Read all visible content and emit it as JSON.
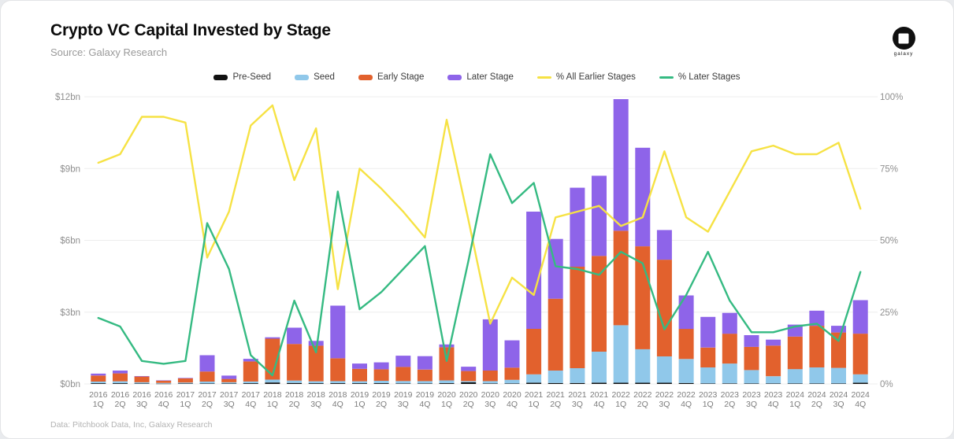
{
  "header": {
    "title": "Crypto VC Capital Invested by Stage",
    "subtitle": "Source: Galaxy Research",
    "logo_text": "galaxy"
  },
  "footer": {
    "source_note": "Data: Pitchbook Data, Inc, Galaxy Research"
  },
  "colors": {
    "pre_seed": "#111111",
    "seed": "#90C8EA",
    "early": "#E2612D",
    "later": "#8E64E9",
    "pct_earlier": "#F6E244",
    "pct_later": "#35BA82",
    "grid": "#ededed",
    "axis_text": "#8f8f8f",
    "x_label_text": "#7d7d7d"
  },
  "legend": [
    {
      "label": "Pre-Seed",
      "color_key": "pre_seed",
      "shape": "bar"
    },
    {
      "label": "Seed",
      "color_key": "seed",
      "shape": "bar"
    },
    {
      "label": "Early Stage",
      "color_key": "early",
      "shape": "bar"
    },
    {
      "label": "Later Stage",
      "color_key": "later",
      "shape": "bar"
    },
    {
      "label": "% All Earlier Stages",
      "color_key": "pct_earlier",
      "shape": "line"
    },
    {
      "label": "% Later Stages",
      "color_key": "pct_later",
      "shape": "line"
    }
  ],
  "chart_data": {
    "type": "combo",
    "subtype": "stacked-bar-with-lines",
    "title": "Crypto VC Capital Invested by Stage",
    "categories": [
      "2016 1Q",
      "2016 2Q",
      "2016 3Q",
      "2016 4Q",
      "2017 1Q",
      "2017 2Q",
      "2017 3Q",
      "2017 4Q",
      "2018 1Q",
      "2018 2Q",
      "2018 3Q",
      "2018 4Q",
      "2019 1Q",
      "2019 2Q",
      "2019 3Q",
      "2019 4Q",
      "2020 1Q",
      "2020 2Q",
      "2020 3Q",
      "2020 4Q",
      "2021 1Q",
      "2021 2Q",
      "2021 3Q",
      "2021 4Q",
      "2022 1Q",
      "2022 2Q",
      "2022 3Q",
      "2022 4Q",
      "2023 1Q",
      "2023 2Q",
      "2023 3Q",
      "2023 4Q",
      "2024 1Q",
      "2024 2Q",
      "2024 3Q",
      "2024 4Q"
    ],
    "bar_unit": "US$ billions",
    "bar_series": [
      {
        "name": "Pre-Seed",
        "color_key": "pre_seed",
        "values": [
          0.03,
          0.03,
          0.02,
          0.01,
          0.02,
          0.02,
          0.02,
          0.03,
          0.06,
          0.04,
          0.03,
          0.03,
          0.03,
          0.03,
          0.02,
          0.02,
          0.03,
          0.07,
          0.02,
          0.02,
          0.05,
          0.04,
          0.04,
          0.05,
          0.05,
          0.05,
          0.05,
          0.04,
          0.02,
          0.02,
          0.02,
          0.02,
          0.02,
          0.02,
          0.02,
          0.05
        ]
      },
      {
        "name": "Seed",
        "color_key": "seed",
        "values": [
          0.07,
          0.08,
          0.05,
          0.03,
          0.04,
          0.08,
          0.05,
          0.07,
          0.12,
          0.1,
          0.08,
          0.09,
          0.08,
          0.1,
          0.1,
          0.1,
          0.12,
          0.05,
          0.1,
          0.15,
          0.35,
          0.52,
          0.62,
          1.3,
          2.4,
          1.4,
          1.1,
          1.0,
          0.67,
          0.83,
          0.56,
          0.3,
          0.6,
          0.67,
          0.65,
          0.35
        ]
      },
      {
        "name": "Early Stage",
        "color_key": "early",
        "values": [
          0.25,
          0.33,
          0.24,
          0.1,
          0.17,
          0.42,
          0.14,
          0.84,
          1.71,
          1.53,
          1.49,
          0.95,
          0.52,
          0.48,
          0.59,
          0.48,
          1.38,
          0.42,
          0.44,
          0.51,
          1.9,
          3.0,
          4.24,
          4.0,
          3.95,
          4.3,
          4.04,
          1.26,
          0.83,
          1.25,
          0.97,
          1.28,
          1.36,
          1.74,
          1.48,
          1.7
        ]
      },
      {
        "name": "Later Stage",
        "color_key": "later",
        "values": [
          0.08,
          0.12,
          0.02,
          0.01,
          0.02,
          0.68,
          0.14,
          0.11,
          0.06,
          0.68,
          0.2,
          2.2,
          0.22,
          0.29,
          0.47,
          0.56,
          0.12,
          0.18,
          2.14,
          1.14,
          4.9,
          2.5,
          3.3,
          3.35,
          5.5,
          4.12,
          1.24,
          1.4,
          1.28,
          0.87,
          0.49,
          0.25,
          0.5,
          0.63,
          0.28,
          1.4
        ]
      }
    ],
    "line_unit": "percent",
    "line_series": [
      {
        "name": "% All Earlier Stages",
        "color_key": "pct_earlier",
        "axis": "right",
        "values": [
          77,
          80,
          93,
          93,
          91,
          44,
          60,
          90,
          97,
          71,
          89,
          33,
          75,
          68,
          60,
          51,
          92,
          57,
          21,
          37,
          31,
          58,
          60,
          62,
          55,
          58,
          81,
          58,
          53,
          67,
          81,
          83,
          80,
          80,
          84,
          61
        ]
      },
      {
        "name": "% Later Stages",
        "color_key": "pct_later",
        "axis": "right",
        "values": [
          23,
          20,
          8,
          7,
          8,
          56,
          40,
          10,
          3,
          29,
          11,
          67,
          26,
          32,
          40,
          48,
          8,
          43,
          80,
          63,
          70,
          41,
          40,
          38,
          46,
          42,
          19,
          31,
          46,
          29,
          18,
          18,
          20,
          21,
          15,
          39
        ]
      }
    ],
    "left_axis": {
      "ticks": [
        "$0bn",
        "$3bn",
        "$6bn",
        "$9bn",
        "$12bn"
      ],
      "tick_values": [
        0,
        3,
        6,
        9,
        12
      ],
      "min": 0,
      "max": 12
    },
    "right_axis": {
      "ticks": [
        "0%",
        "25%",
        "50%",
        "75%",
        "100%"
      ],
      "tick_values": [
        0,
        25,
        50,
        75,
        100
      ],
      "min": 0,
      "max": 100
    },
    "grid": true,
    "legend_position": "top"
  }
}
